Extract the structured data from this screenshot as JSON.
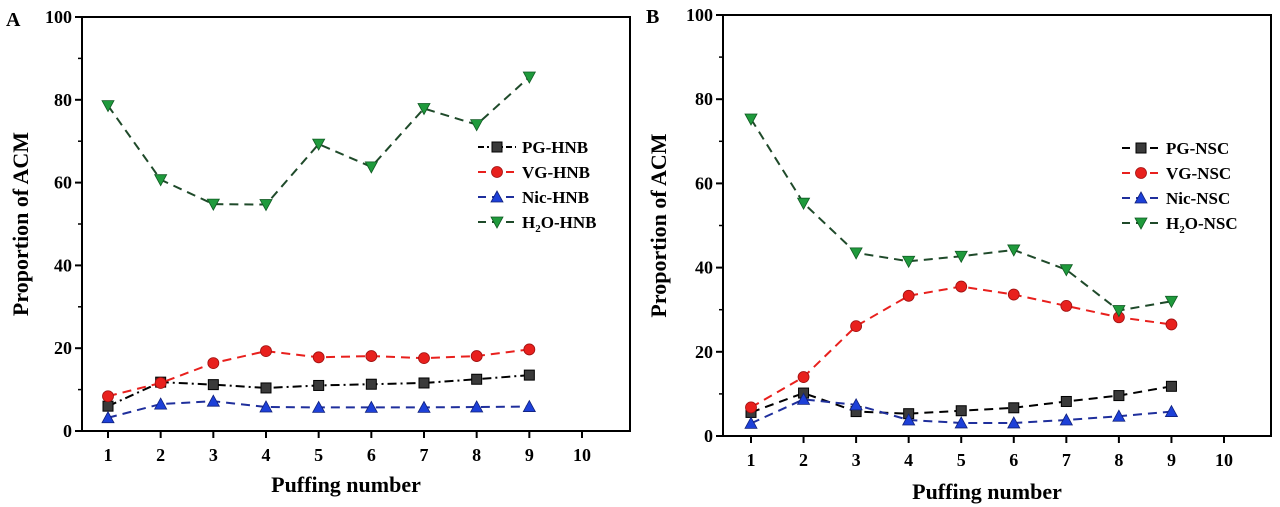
{
  "chart_data": [
    {
      "type": "line",
      "panel_label": "A",
      "xlabel": "Puffing number",
      "ylabel": "Proportion of ACM",
      "xlim": [
        0.8,
        10.9
      ],
      "ylim": [
        0,
        100
      ],
      "x_ticks": [
        1,
        2,
        3,
        4,
        5,
        6,
        7,
        8,
        9,
        10
      ],
      "y_ticks": [
        0,
        20,
        40,
        60,
        80,
        100
      ],
      "grid": false,
      "legend_position": "right",
      "x": [
        1,
        2,
        3,
        4,
        5,
        6,
        7,
        8,
        9
      ],
      "series": [
        {
          "name": "PG-HNB",
          "name_main": "PG-HNB",
          "marker": "square",
          "line": "dash-dot",
          "color": "#000000",
          "marker_color": "#3a3a3a",
          "values": [
            6.0,
            11.8,
            11.2,
            10.4,
            11.0,
            11.3,
            11.6,
            12.5,
            13.5
          ]
        },
        {
          "name": "VG-HNB",
          "name_main": "VG-HNB",
          "marker": "circle",
          "line": "dash",
          "color": "#e8201d",
          "marker_color": "#e8201d",
          "values": [
            8.4,
            11.6,
            16.4,
            19.3,
            17.8,
            18.1,
            17.6,
            18.1,
            19.7
          ]
        },
        {
          "name": "Nic-HNB",
          "name_main": "Nic-HNB",
          "marker": "triangle-up",
          "line": "dash",
          "color": "#1f2f9c",
          "marker_color": "#1d40d8",
          "values": [
            3.2,
            6.5,
            7.2,
            5.8,
            5.7,
            5.7,
            5.7,
            5.8,
            5.9
          ]
        },
        {
          "name": "H2O-HNB",
          "name_main": "H",
          "name_sub": "2",
          "name_rest": "O-HNB",
          "marker": "triangle-down",
          "line": "dash",
          "color": "#1f4a2a",
          "marker_color": "#1f9a3c",
          "values": [
            78.6,
            60.7,
            54.8,
            54.7,
            69.3,
            63.8,
            77.9,
            74.0,
            85.5
          ]
        }
      ]
    },
    {
      "type": "line",
      "panel_label": "B",
      "xlabel": "Puffing number",
      "ylabel": "Proportion of ACM",
      "xlim": [
        0.8,
        10.9
      ],
      "ylim": [
        0,
        100
      ],
      "x_ticks": [
        1,
        2,
        3,
        4,
        5,
        6,
        7,
        8,
        9,
        10
      ],
      "y_ticks": [
        0,
        20,
        40,
        60,
        80,
        100
      ],
      "grid": false,
      "legend_position": "right",
      "x": [
        1,
        2,
        3,
        4,
        5,
        6,
        7,
        8,
        9
      ],
      "series": [
        {
          "name": "PG-NSC",
          "name_main": "PG-NSC",
          "marker": "square",
          "line": "dash",
          "color": "#000000",
          "marker_color": "#3a3a3a",
          "values": [
            5.6,
            10.2,
            5.8,
            5.3,
            6.0,
            6.7,
            8.2,
            9.6,
            11.8
          ]
        },
        {
          "name": "VG-NSC",
          "name_main": "VG-NSC",
          "marker": "circle",
          "line": "dash",
          "color": "#e8201d",
          "marker_color": "#e8201d",
          "values": [
            6.8,
            14.0,
            26.1,
            33.3,
            35.5,
            33.6,
            30.9,
            28.2,
            26.5
          ]
        },
        {
          "name": "Nic-NSC",
          "name_main": "Nic-NSC",
          "marker": "triangle-up",
          "line": "dash",
          "color": "#1f2f9c",
          "marker_color": "#1d40d8",
          "values": [
            3.0,
            8.7,
            7.4,
            3.8,
            3.1,
            3.1,
            3.8,
            4.7,
            5.8
          ]
        },
        {
          "name": "H2O-NSC",
          "name_main": "H",
          "name_sub": "2",
          "name_rest": "O-NSC",
          "marker": "triangle-down",
          "line": "dash",
          "color": "#1f4a2a",
          "marker_color": "#1f9a3c",
          "values": [
            75.3,
            55.3,
            43.5,
            41.5,
            42.7,
            44.2,
            39.5,
            29.8,
            32.0
          ]
        }
      ]
    }
  ]
}
